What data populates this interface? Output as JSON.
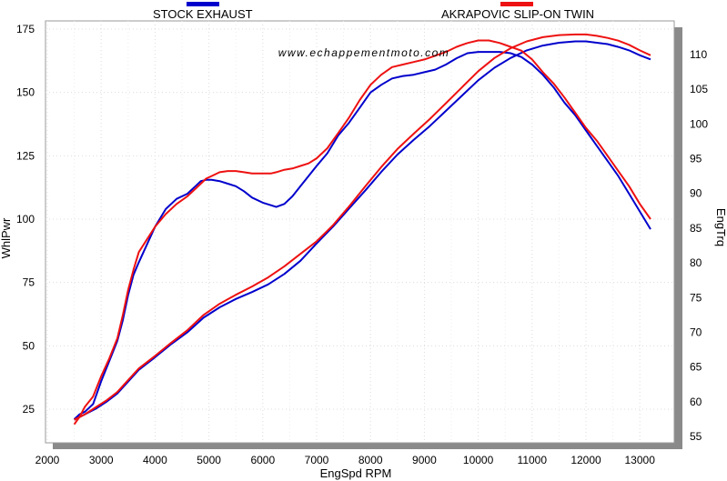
{
  "chart_data": {
    "type": "line",
    "watermark": "www.echappementmoto.com",
    "xlabel": "EngSpd  RPM",
    "ylabel_left": "WhlPwr",
    "ylabel_right": "EngTrq",
    "xlim": [
      2000,
      13500
    ],
    "ylim_left": [
      10,
      180
    ],
    "ylim_right": [
      54,
      113
    ],
    "x_ticks": [
      2000,
      3000,
      4000,
      5000,
      6000,
      7000,
      8000,
      9000,
      10000,
      11000,
      12000,
      13000
    ],
    "y_ticks_left": [
      25,
      50,
      75,
      100,
      125,
      150,
      175
    ],
    "y_ticks_right": [
      55,
      60,
      65,
      70,
      75,
      80,
      85,
      90,
      95,
      100,
      105,
      110
    ],
    "grid": true,
    "legend_position": "top",
    "series": [
      {
        "name": "STOCK EXHAUST",
        "color": "#0000cc",
        "power": {
          "x": [
            2500,
            2600,
            2700,
            2850,
            3000,
            3150,
            3300,
            3400,
            3500,
            3600,
            3700,
            3850,
            4000,
            4200,
            4400,
            4600,
            4750,
            4850,
            4950,
            5050,
            5200,
            5350,
            5500,
            5650,
            5800,
            6000,
            6150,
            6250,
            6400,
            6550,
            6700,
            6850,
            7000,
            7200,
            7400,
            7600,
            7800,
            8000,
            8200,
            8400,
            8600,
            8800,
            9000,
            9200,
            9400,
            9600,
            9800,
            10000,
            10200,
            10400,
            10600,
            10800,
            11000,
            11200,
            11400,
            11600,
            11800,
            12000,
            12200,
            12400,
            12600,
            12800,
            13000,
            13200
          ],
          "y": [
            21,
            23,
            24,
            27,
            36,
            44,
            52,
            60,
            70,
            78,
            83,
            90,
            97,
            104,
            108,
            110,
            113,
            115,
            115.5,
            115.5,
            115,
            114,
            113,
            111,
            108.5,
            106.5,
            105.5,
            104.8,
            106,
            109,
            113,
            117,
            121,
            126,
            133,
            138,
            144,
            150,
            153,
            155.5,
            156.5,
            157,
            158,
            159,
            161,
            163.5,
            165.5,
            166,
            166,
            166,
            165.5,
            164,
            161,
            157,
            152,
            146,
            141,
            135,
            129,
            123,
            117,
            110,
            103,
            96
          ]
        },
        "torque": {
          "x": [
            2500,
            2700,
            2900,
            3100,
            3300,
            3500,
            3700,
            4000,
            4300,
            4600,
            4900,
            5200,
            5500,
            5800,
            6100,
            6400,
            6700,
            7000,
            7300,
            7600,
            7900,
            8200,
            8500,
            8800,
            9100,
            9400,
            9700,
            10000,
            10300,
            10600,
            10900,
            11200,
            11500,
            11800,
            12000,
            12200,
            12400,
            12600,
            12800,
            13000,
            13200
          ],
          "y": [
            57.4,
            58.2,
            59.0,
            60.0,
            61.2,
            62.9,
            64.6,
            66.4,
            68.3,
            70.0,
            72.1,
            73.6,
            74.8,
            75.8,
            76.9,
            78.4,
            80.3,
            82.8,
            85.2,
            87.8,
            90.4,
            93.1,
            95.6,
            97.7,
            99.7,
            101.9,
            104.1,
            106.3,
            108.1,
            109.5,
            110.6,
            111.3,
            111.7,
            111.9,
            111.9,
            111.7,
            111.5,
            111.1,
            110.6,
            109.9,
            109.3
          ]
        }
      },
      {
        "name": "AKRAPOVIC SLIP-ON TWIN",
        "color": "#ee1111",
        "power": {
          "x": [
            2500,
            2600,
            2700,
            2850,
            3000,
            3150,
            3300,
            3400,
            3500,
            3600,
            3700,
            3850,
            4000,
            4200,
            4400,
            4600,
            4750,
            4850,
            4950,
            5050,
            5200,
            5350,
            5500,
            5650,
            5800,
            6000,
            6150,
            6250,
            6400,
            6550,
            6700,
            6850,
            7000,
            7200,
            7400,
            7600,
            7800,
            8000,
            8200,
            8400,
            8600,
            8800,
            9000,
            9200,
            9400,
            9600,
            9800,
            10000,
            10200,
            10400,
            10600,
            10800,
            11000,
            11200,
            11400,
            11600,
            11800,
            12000,
            12200,
            12400,
            12600,
            12800,
            13000,
            13200
          ],
          "y": [
            19,
            22,
            26,
            30,
            38,
            45,
            53,
            62,
            72,
            80,
            87,
            92,
            97,
            102,
            106,
            109,
            112,
            114,
            116,
            117,
            118.5,
            119,
            119,
            118.5,
            118,
            118,
            118,
            118.5,
            119.5,
            120,
            121,
            122,
            124,
            128,
            134,
            140,
            147,
            153,
            157,
            160,
            161,
            162,
            163,
            164.5,
            166,
            168,
            169.5,
            170.5,
            170.5,
            169.5,
            168,
            166.5,
            163,
            158,
            153.5,
            148,
            142,
            136,
            131,
            125,
            119,
            113,
            106,
            100
          ]
        },
        "torque": {
          "x": [
            2500,
            2700,
            2900,
            3100,
            3300,
            3500,
            3700,
            4000,
            4300,
            4600,
            4900,
            5200,
            5500,
            5800,
            6100,
            6400,
            6700,
            7000,
            7300,
            7600,
            7900,
            8200,
            8500,
            8800,
            9100,
            9400,
            9700,
            10000,
            10300,
            10600,
            10900,
            11200,
            11500,
            11800,
            12000,
            12200,
            12400,
            12600,
            12800,
            13000,
            13200
          ],
          "y": [
            57.4,
            58.2,
            59.2,
            60.2,
            61.4,
            63.1,
            64.8,
            66.6,
            68.5,
            70.3,
            72.5,
            74.1,
            75.4,
            76.6,
            77.9,
            79.5,
            81.3,
            83.1,
            85.4,
            88.1,
            91.0,
            93.8,
            96.4,
            98.6,
            100.7,
            103.0,
            105.3,
            107.6,
            109.5,
            110.9,
            111.9,
            112.5,
            112.8,
            112.9,
            112.9,
            112.7,
            112.4,
            112.0,
            111.4,
            110.6,
            109.9
          ]
        }
      }
    ]
  }
}
